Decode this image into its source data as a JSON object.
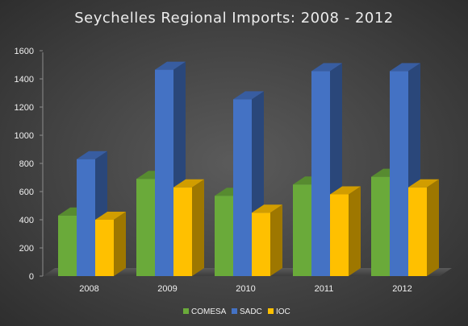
{
  "chart_data": {
    "type": "bar",
    "title": "Seychelles Regional Imports: 2008 - 2012",
    "xlabel": "",
    "ylabel": "",
    "categories": [
      "2008",
      "2009",
      "2010",
      "2011",
      "2012"
    ],
    "series": [
      {
        "name": "COMESA",
        "values": [
          430,
          690,
          570,
          650,
          705
        ],
        "color": "#6aaa3a"
      },
      {
        "name": "SADC",
        "values": [
          830,
          1465,
          1255,
          1455,
          1455
        ],
        "color": "#4472c4"
      },
      {
        "name": "IOC",
        "values": [
          400,
          630,
          450,
          580,
          630
        ],
        "color": "#ffc000"
      }
    ],
    "ylim": [
      0,
      1600
    ],
    "yticks": [
      0,
      200,
      400,
      600,
      800,
      1000,
      1200,
      1400,
      1600
    ],
    "style": "3d-clustered-column",
    "grid": false,
    "legend": "bottom"
  }
}
